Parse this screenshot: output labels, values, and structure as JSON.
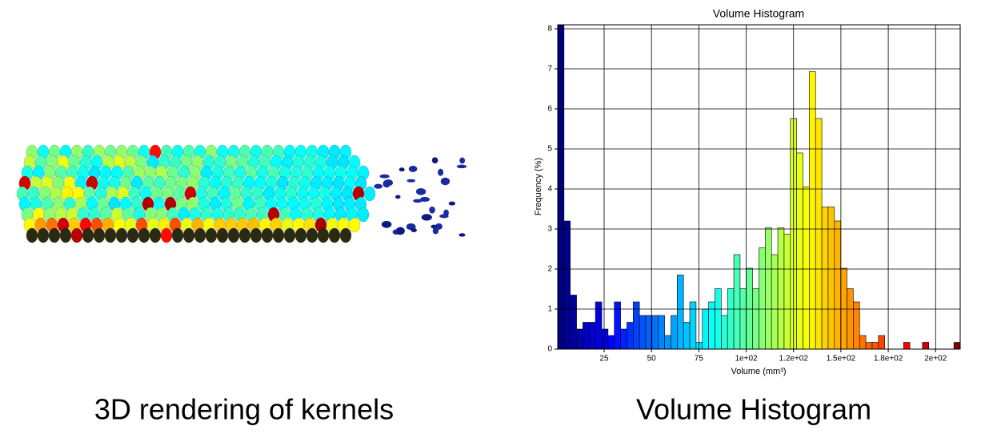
{
  "caption_left": "3D rendering of kernels",
  "chart_data": {
    "type": "histogram",
    "title": "Volume Histogram",
    "caption": "Volume Histogram",
    "x_label": "Volume (mm³)",
    "y_label": "Frequency (%)",
    "colormap": "jet",
    "edgecolor": "#000000",
    "grid": true,
    "bins": [
      0.5,
      3.82,
      7.14,
      10.46,
      13.78,
      17.1,
      20.42,
      23.74,
      27.06,
      30.38,
      33.7,
      37.02,
      40.34,
      43.66,
      46.98,
      50.3,
      53.62,
      56.94,
      60.26,
      63.58,
      66.9,
      70.22,
      73.54,
      76.86,
      80.18,
      83.5,
      86.82,
      90.14,
      93.46,
      96.78,
      100.1,
      103.42,
      106.74,
      110.06,
      113.38,
      116.7,
      120.02,
      123.34,
      126.66,
      129.98,
      133.3,
      136.62,
      139.94,
      143.26,
      146.58,
      149.9,
      153.22,
      156.54,
      159.86,
      163.18,
      166.5,
      169.82,
      173.14,
      176.46,
      179.78,
      183.1,
      186.42,
      189.74,
      193.06,
      196.38,
      199.7,
      203.02,
      206.34,
      209.66,
      212.98
    ],
    "values": [
      8.1,
      3.2,
      1.35,
      0.5,
      0.67,
      0.67,
      1.18,
      0.5,
      0.34,
      1.18,
      0.5,
      0.67,
      1.18,
      0.84,
      0.84,
      0.84,
      0.84,
      0.34,
      0.84,
      1.85,
      0.67,
      1.18,
      0.17,
      1.0,
      1.18,
      1.51,
      0.84,
      1.51,
      2.36,
      1.51,
      2.02,
      1.51,
      2.53,
      3.03,
      2.36,
      3.03,
      2.87,
      5.76,
      4.9,
      4.05,
      6.93,
      5.76,
      3.55,
      3.55,
      3.2,
      2.02,
      1.51,
      1.18,
      0.34,
      0.17,
      0.17,
      0.34,
      0,
      0,
      0,
      0.17,
      0,
      0,
      0.17,
      0,
      0,
      0,
      0,
      0.17
    ],
    "xlim": [
      0.5,
      212.98
    ],
    "ylim": [
      0,
      8.1
    ],
    "xticks": [
      25,
      50,
      75,
      {
        "value": 100,
        "label": "1e+02"
      },
      {
        "value": 125,
        "label": "1.2e+02"
      },
      {
        "value": 150,
        "label": "1.5e+02"
      },
      {
        "value": 175,
        "label": "1.8e+02"
      },
      {
        "value": 200,
        "label": "2e+02"
      }
    ],
    "yticks": [
      0,
      1,
      2,
      3,
      4,
      5,
      6,
      7,
      8
    ]
  }
}
